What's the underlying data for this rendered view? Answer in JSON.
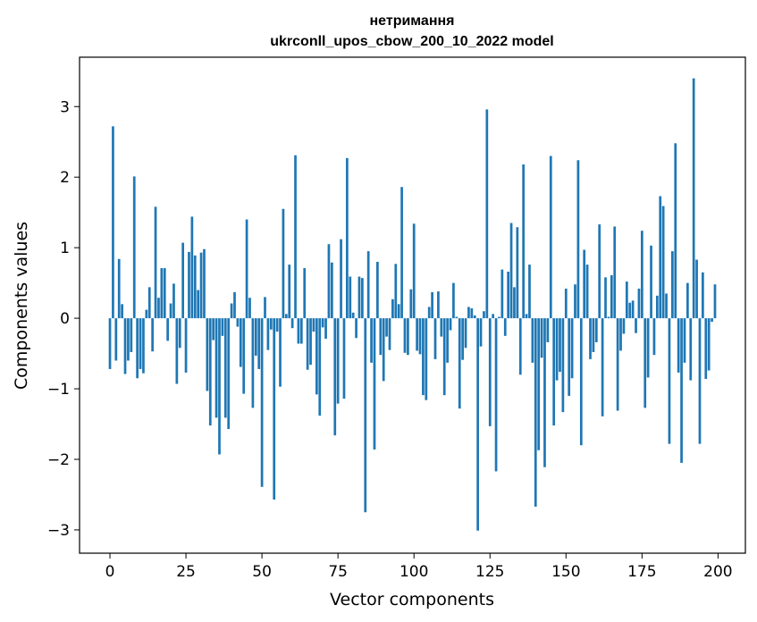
{
  "chart_data": {
    "type": "bar",
    "title_line1": "нетримання",
    "title_line2": "ukrconll_upos_cbow_200_10_2022 model",
    "xlabel": "Vector components",
    "ylabel": "Components values",
    "xlim": [
      -10,
      209
    ],
    "ylim": [
      -3.33,
      3.7
    ],
    "xticks": [
      0,
      25,
      50,
      75,
      100,
      125,
      150,
      175,
      200
    ],
    "xtick_labels": [
      "0",
      "25",
      "50",
      "75",
      "100",
      "125",
      "150",
      "175",
      "200"
    ],
    "yticks": [
      -3,
      -2,
      -1,
      0,
      1,
      2,
      3
    ],
    "ytick_labels": [
      "−3",
      "−2",
      "−1",
      "0",
      "1",
      "2",
      "3"
    ],
    "bar_color": "#1f77b4",
    "values": [
      -0.72,
      2.72,
      -0.6,
      0.84,
      0.2,
      -0.79,
      -0.6,
      -0.48,
      2.01,
      -0.85,
      -0.72,
      -0.78,
      0.12,
      0.44,
      -0.47,
      1.58,
      0.29,
      0.71,
      0.71,
      -0.32,
      0.21,
      0.49,
      -0.93,
      -0.42,
      1.07,
      -0.77,
      0.94,
      1.44,
      0.89,
      0.4,
      0.93,
      0.98,
      -1.03,
      -1.52,
      -0.31,
      -1.41,
      -1.93,
      -0.25,
      -1.41,
      -1.57,
      0.21,
      0.37,
      -0.12,
      -0.69,
      -1.07,
      1.4,
      0.29,
      -1.27,
      -0.53,
      -0.72,
      -2.39,
      0.3,
      -0.45,
      -0.16,
      -2.57,
      -0.19,
      -0.97,
      1.55,
      0.06,
      0.76,
      -0.14,
      2.31,
      -0.36,
      -0.36,
      0.71,
      -0.73,
      -0.66,
      -0.19,
      -1.08,
      -1.38,
      -0.13,
      -0.29,
      1.05,
      0.79,
      -1.66,
      -1.21,
      1.12,
      -1.14,
      2.27,
      0.59,
      0.08,
      -0.28,
      0.59,
      0.57,
      -2.75,
      0.95,
      -0.63,
      -1.86,
      0.8,
      -0.52,
      -0.89,
      -0.26,
      -0.45,
      0.27,
      0.77,
      0.2,
      1.86,
      -0.49,
      -0.52,
      0.41,
      1.34,
      -0.46,
      -0.51,
      -1.09,
      -1.16,
      0.16,
      0.37,
      -0.58,
      0.38,
      -0.26,
      -1.09,
      -0.63,
      -0.17,
      0.5,
      0.02,
      -1.28,
      -0.59,
      -0.42,
      0.16,
      0.14,
      0.04,
      -3.01,
      -0.4,
      0.1,
      2.96,
      -1.53,
      0.06,
      -2.17,
      0.02,
      0.69,
      -0.25,
      0.66,
      1.35,
      0.44,
      1.29,
      -0.8,
      2.18,
      0.06,
      0.76,
      -0.63,
      -2.67,
      -1.87,
      -0.56,
      -2.11,
      -0.34,
      2.3,
      -1.52,
      -0.88,
      -0.76,
      -1.33,
      0.42,
      -1.1,
      -0.85,
      0.48,
      2.24,
      -1.8,
      0.97,
      0.76,
      -0.58,
      -0.48,
      -0.34,
      1.33,
      -1.39,
      0.58,
      0.02,
      0.61,
      1.3,
      -1.31,
      -0.46,
      -0.22,
      0.52,
      0.22,
      0.25,
      -0.21,
      0.42,
      1.24,
      -1.27,
      -0.84,
      1.03,
      -0.52,
      0.32,
      1.73,
      1.59,
      0.35,
      -1.78,
      0.95,
      2.48,
      -0.77,
      -2.05,
      -0.63,
      0.5,
      -0.88,
      3.4,
      0.83,
      -1.78,
      0.65,
      -0.86,
      -0.74,
      -0.05,
      0.48
    ]
  }
}
